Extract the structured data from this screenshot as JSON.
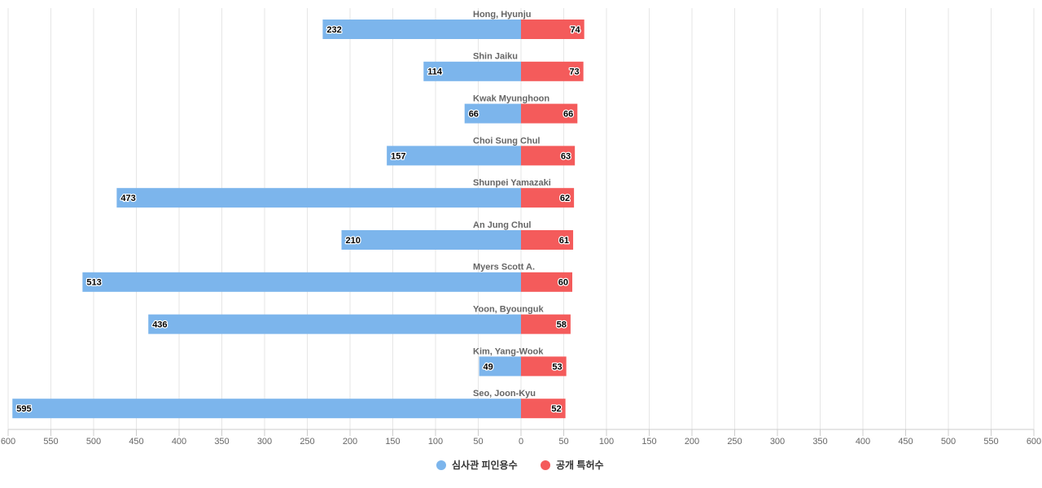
{
  "chart_data": {
    "type": "bar",
    "orientation": "horizontal-diverging",
    "categories": [
      "Hong, Hyunju",
      "Shin Jaiku",
      "Kwak Myunghoon",
      "Choi Sung Chul",
      "Shunpei Yamazaki",
      "An Jung Chul",
      "Myers Scott A.",
      "Yoon, Byounguk",
      "Kim, Yang-Wook",
      "Seo, Joon-Kyu"
    ],
    "series": [
      {
        "name": "심사관 피인용수",
        "color": "#7cb5ec",
        "direction": "left",
        "values": [
          232,
          114,
          66,
          157,
          473,
          210,
          513,
          436,
          49,
          595
        ]
      },
      {
        "name": "공개 특허수",
        "color": "#f45b5b",
        "direction": "right",
        "values": [
          74,
          73,
          66,
          63,
          62,
          61,
          60,
          58,
          53,
          52
        ]
      }
    ],
    "xlim": [
      -600,
      600
    ],
    "ticks": [
      600,
      550,
      500,
      450,
      400,
      350,
      300,
      250,
      200,
      150,
      100,
      50,
      0,
      50,
      100,
      150,
      200,
      250,
      300,
      350,
      400,
      450,
      500,
      550,
      600
    ],
    "grid": true,
    "legend": "bottom-center",
    "title": "",
    "xlabel": "",
    "ylabel": ""
  }
}
